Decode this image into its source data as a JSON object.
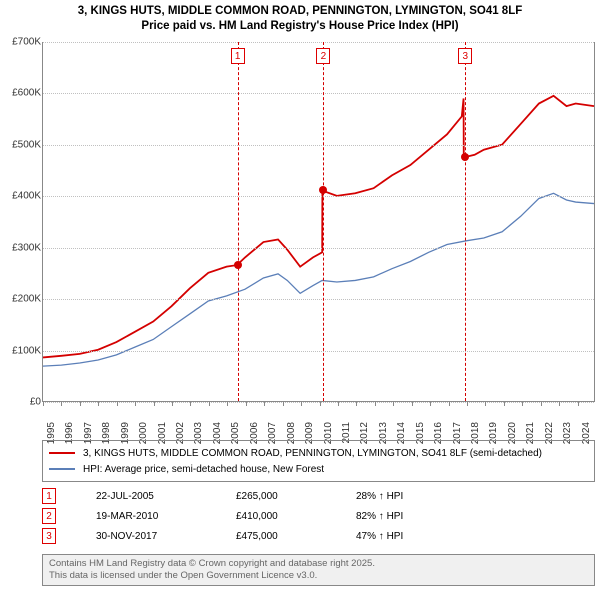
{
  "title": {
    "line1": "3, KINGS HUTS, MIDDLE COMMON ROAD, PENNINGTON, LYMINGTON, SO41 8LF",
    "line2": "Price paid vs. HM Land Registry's House Price Index (HPI)"
  },
  "chart": {
    "type": "line",
    "background_color": "#ffffff",
    "grid_color": "#c0c0c0",
    "axis_color": "#888888",
    "x_min": 1995,
    "x_max": 2025,
    "y_min": 0,
    "y_max": 700000,
    "y_ticks": [
      0,
      100000,
      200000,
      300000,
      400000,
      500000,
      600000,
      700000
    ],
    "y_tick_labels": [
      "£0",
      "£100K",
      "£200K",
      "£300K",
      "£400K",
      "£500K",
      "£600K",
      "£700K"
    ],
    "x_ticks": [
      1995,
      1996,
      1997,
      1998,
      1999,
      2000,
      2001,
      2002,
      2003,
      2004,
      2005,
      2006,
      2007,
      2008,
      2009,
      2010,
      2011,
      2012,
      2013,
      2014,
      2015,
      2016,
      2017,
      2018,
      2019,
      2020,
      2021,
      2022,
      2023,
      2024
    ],
    "label_fontsize": 10,
    "series": [
      {
        "id": "price_paid",
        "label": "3, KINGS HUTS, MIDDLE COMMON ROAD, PENNINGTON, LYMINGTON, SO41 8LF (semi-detached)",
        "color": "#d40000",
        "line_width": 1.8,
        "data": [
          [
            1995.0,
            85000
          ],
          [
            1996.0,
            88000
          ],
          [
            1997.0,
            92000
          ],
          [
            1998.0,
            100000
          ],
          [
            1999.0,
            115000
          ],
          [
            2000.0,
            135000
          ],
          [
            2001.0,
            155000
          ],
          [
            2002.0,
            185000
          ],
          [
            2003.0,
            220000
          ],
          [
            2004.0,
            250000
          ],
          [
            2005.0,
            262000
          ],
          [
            2005.56,
            265000
          ],
          [
            2006.0,
            280000
          ],
          [
            2007.0,
            310000
          ],
          [
            2007.8,
            315000
          ],
          [
            2008.3,
            295000
          ],
          [
            2009.0,
            262000
          ],
          [
            2009.7,
            280000
          ],
          [
            2010.2,
            290000
          ],
          [
            2010.21,
            410000
          ],
          [
            2011.0,
            400000
          ],
          [
            2012.0,
            405000
          ],
          [
            2013.0,
            415000
          ],
          [
            2014.0,
            440000
          ],
          [
            2015.0,
            460000
          ],
          [
            2016.0,
            490000
          ],
          [
            2017.0,
            520000
          ],
          [
            2017.8,
            555000
          ],
          [
            2017.9,
            590000
          ],
          [
            2017.91,
            475000
          ],
          [
            2018.5,
            480000
          ],
          [
            2019.0,
            490000
          ],
          [
            2020.0,
            500000
          ],
          [
            2021.0,
            540000
          ],
          [
            2022.0,
            580000
          ],
          [
            2022.8,
            595000
          ],
          [
            2023.5,
            575000
          ],
          [
            2024.0,
            580000
          ],
          [
            2025.0,
            575000
          ]
        ]
      },
      {
        "id": "hpi",
        "label": "HPI: Average price, semi-detached house, New Forest",
        "color": "#5b7fb8",
        "line_width": 1.3,
        "data": [
          [
            1995.0,
            68000
          ],
          [
            1996.0,
            70000
          ],
          [
            1997.0,
            74000
          ],
          [
            1998.0,
            80000
          ],
          [
            1999.0,
            90000
          ],
          [
            2000.0,
            105000
          ],
          [
            2001.0,
            120000
          ],
          [
            2002.0,
            145000
          ],
          [
            2003.0,
            170000
          ],
          [
            2004.0,
            195000
          ],
          [
            2005.0,
            205000
          ],
          [
            2006.0,
            218000
          ],
          [
            2007.0,
            240000
          ],
          [
            2007.8,
            248000
          ],
          [
            2008.3,
            235000
          ],
          [
            2009.0,
            210000
          ],
          [
            2009.7,
            225000
          ],
          [
            2010.2,
            235000
          ],
          [
            2011.0,
            232000
          ],
          [
            2012.0,
            235000
          ],
          [
            2013.0,
            242000
          ],
          [
            2014.0,
            258000
          ],
          [
            2015.0,
            272000
          ],
          [
            2016.0,
            290000
          ],
          [
            2017.0,
            305000
          ],
          [
            2018.0,
            312000
          ],
          [
            2019.0,
            318000
          ],
          [
            2020.0,
            330000
          ],
          [
            2021.0,
            360000
          ],
          [
            2022.0,
            395000
          ],
          [
            2022.8,
            405000
          ],
          [
            2023.5,
            392000
          ],
          [
            2024.0,
            388000
          ],
          [
            2025.0,
            385000
          ]
        ]
      }
    ],
    "reference_lines": [
      {
        "n": "1",
        "x": 2005.56,
        "marker_y": 265000,
        "marker_color": "#d40000"
      },
      {
        "n": "2",
        "x": 2010.21,
        "marker_y": 410000,
        "marker_color": "#d40000"
      },
      {
        "n": "3",
        "x": 2017.91,
        "marker_y": 475000,
        "marker_color": "#d40000"
      }
    ],
    "refline_color": "#d40000"
  },
  "legend": {
    "rows": [
      {
        "color": "#d40000",
        "label": "3, KINGS HUTS, MIDDLE COMMON ROAD, PENNINGTON, LYMINGTON, SO41 8LF (semi-detached)"
      },
      {
        "color": "#5b7fb8",
        "label": "HPI: Average price, semi-detached house, New Forest"
      }
    ]
  },
  "events": [
    {
      "n": "1",
      "date": "22-JUL-2005",
      "price": "£265,000",
      "delta": "28% ↑ HPI"
    },
    {
      "n": "2",
      "date": "19-MAR-2010",
      "price": "£410,000",
      "delta": "82% ↑ HPI"
    },
    {
      "n": "3",
      "date": "30-NOV-2017",
      "price": "£475,000",
      "delta": "47% ↑ HPI"
    }
  ],
  "footer": {
    "line1": "Contains HM Land Registry data © Crown copyright and database right 2025.",
    "line2": "This data is licensed under the Open Government Licence v3.0."
  }
}
